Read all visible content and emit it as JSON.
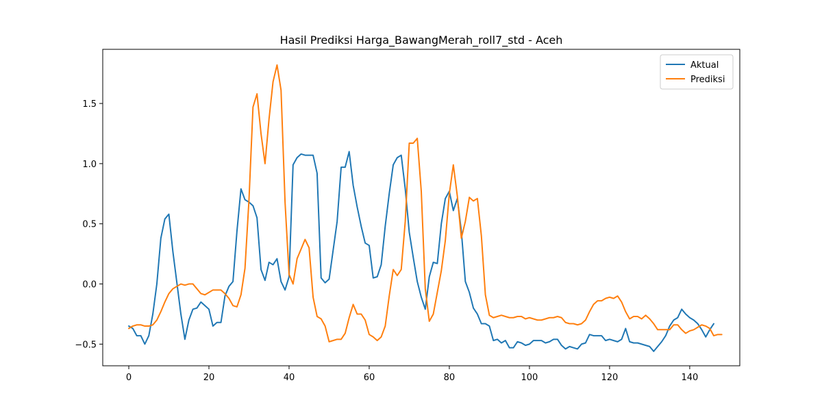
{
  "chart_data": {
    "type": "line",
    "title": "Hasil Prediksi Harga_BawangMerah_roll7_std - Aceh",
    "xlabel": "",
    "ylabel": "",
    "xlim": [
      -6.5,
      152.5
    ],
    "ylim": [
      -0.68,
      1.95
    ],
    "xticks": [
      0,
      20,
      40,
      60,
      80,
      100,
      120,
      140
    ],
    "yticks": [
      -0.5,
      0.0,
      0.5,
      1.0,
      1.5
    ],
    "legend_position": "top-right",
    "grid": false,
    "series": [
      {
        "name": "Aktual",
        "color": "#1f77b4",
        "x_start": 0,
        "values": [
          -0.35,
          -0.37,
          -0.43,
          -0.43,
          -0.5,
          -0.43,
          -0.25,
          0.0,
          0.38,
          0.54,
          0.58,
          0.27,
          0.01,
          -0.25,
          -0.46,
          -0.3,
          -0.21,
          -0.2,
          -0.15,
          -0.18,
          -0.21,
          -0.35,
          -0.32,
          -0.32,
          -0.1,
          -0.02,
          0.02,
          0.44,
          0.79,
          0.7,
          0.68,
          0.65,
          0.55,
          0.12,
          0.03,
          0.18,
          0.16,
          0.21,
          0.02,
          -0.05,
          0.06,
          0.99,
          1.05,
          1.08,
          1.07,
          1.07,
          1.07,
          0.92,
          0.05,
          0.01,
          0.04,
          0.28,
          0.52,
          0.97,
          0.97,
          1.1,
          0.82,
          0.64,
          0.48,
          0.34,
          0.32,
          0.05,
          0.06,
          0.16,
          0.48,
          0.75,
          0.99,
          1.05,
          1.07,
          0.79,
          0.43,
          0.22,
          0.02,
          -0.11,
          -0.21,
          0.06,
          0.18,
          0.17,
          0.5,
          0.71,
          0.77,
          0.61,
          0.71,
          0.44,
          0.02,
          -0.07,
          -0.2,
          -0.25,
          -0.33,
          -0.33,
          -0.35,
          -0.47,
          -0.46,
          -0.49,
          -0.47,
          -0.53,
          -0.53,
          -0.48,
          -0.49,
          -0.51,
          -0.5,
          -0.47,
          -0.47,
          -0.47,
          -0.49,
          -0.48,
          -0.46,
          -0.46,
          -0.51,
          -0.54,
          -0.52,
          -0.53,
          -0.54,
          -0.5,
          -0.49,
          -0.42,
          -0.43,
          -0.43,
          -0.43,
          -0.47,
          -0.46,
          -0.47,
          -0.48,
          -0.46,
          -0.37,
          -0.48,
          -0.49,
          -0.49,
          -0.5,
          -0.51,
          -0.52,
          -0.56,
          -0.52,
          -0.48,
          -0.43,
          -0.35,
          -0.3,
          -0.28,
          -0.21,
          -0.25,
          -0.28,
          -0.3,
          -0.33,
          -0.38,
          -0.44,
          -0.38,
          -0.33
        ]
      },
      {
        "name": "Prediksi",
        "color": "#ff7f0e",
        "x_start": 0,
        "values": [
          -0.37,
          -0.35,
          -0.34,
          -0.34,
          -0.35,
          -0.35,
          -0.34,
          -0.3,
          -0.23,
          -0.15,
          -0.08,
          -0.04,
          -0.02,
          0.0,
          -0.01,
          0.0,
          0.0,
          -0.04,
          -0.08,
          -0.09,
          -0.07,
          -0.05,
          -0.05,
          -0.05,
          -0.08,
          -0.12,
          -0.18,
          -0.19,
          -0.09,
          0.13,
          0.7,
          1.47,
          1.58,
          1.25,
          1.0,
          1.37,
          1.68,
          1.82,
          1.61,
          0.68,
          0.08,
          0.0,
          0.21,
          0.29,
          0.37,
          0.3,
          -0.11,
          -0.27,
          -0.29,
          -0.35,
          -0.48,
          -0.47,
          -0.46,
          -0.46,
          -0.41,
          -0.28,
          -0.17,
          -0.25,
          -0.25,
          -0.3,
          -0.42,
          -0.44,
          -0.47,
          -0.44,
          -0.35,
          -0.1,
          0.12,
          0.07,
          0.12,
          0.52,
          1.17,
          1.17,
          1.21,
          0.77,
          -0.04,
          -0.31,
          -0.25,
          -0.07,
          0.11,
          0.36,
          0.75,
          0.99,
          0.73,
          0.38,
          0.52,
          0.72,
          0.69,
          0.71,
          0.4,
          -0.09,
          -0.26,
          -0.28,
          -0.27,
          -0.26,
          -0.27,
          -0.28,
          -0.28,
          -0.27,
          -0.27,
          -0.29,
          -0.28,
          -0.29,
          -0.3,
          -0.3,
          -0.29,
          -0.28,
          -0.28,
          -0.27,
          -0.28,
          -0.32,
          -0.33,
          -0.33,
          -0.34,
          -0.33,
          -0.3,
          -0.23,
          -0.17,
          -0.14,
          -0.14,
          -0.12,
          -0.11,
          -0.12,
          -0.1,
          -0.15,
          -0.23,
          -0.29,
          -0.27,
          -0.27,
          -0.29,
          -0.26,
          -0.29,
          -0.33,
          -0.38,
          -0.38,
          -0.38,
          -0.38,
          -0.34,
          -0.34,
          -0.38,
          -0.41,
          -0.39,
          -0.38,
          -0.36,
          -0.34,
          -0.35,
          -0.37,
          -0.43,
          -0.42,
          -0.42
        ]
      }
    ]
  }
}
